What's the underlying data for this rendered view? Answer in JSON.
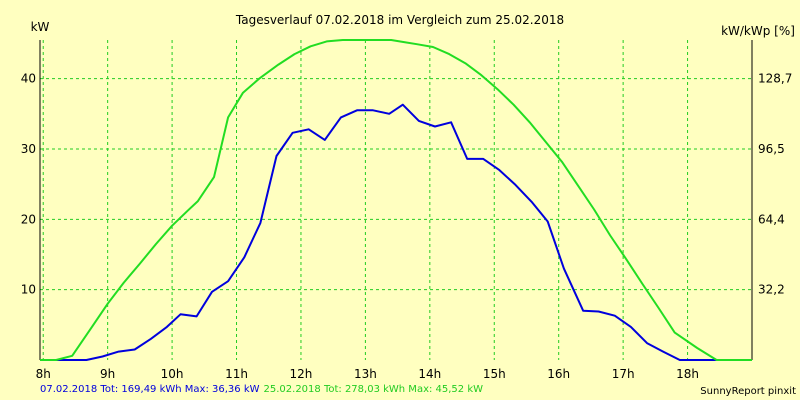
{
  "chart_data": {
    "type": "line",
    "title": "Tagesverlauf 07.02.2018 im Vergleich zum 25.02.2018",
    "ylabel_left": "kW",
    "ylabel_right": "kW/kWp [%]",
    "xlim": [
      7.95,
      19.0
    ],
    "ylim": [
      0,
      45.5
    ],
    "y_ticks_left": [
      10,
      20,
      30,
      40
    ],
    "y_tick_labels_left": [
      "10",
      "20",
      "30",
      "40"
    ],
    "y_ticks_right": [
      10,
      20,
      30,
      40
    ],
    "y_tick_labels_right": [
      "32,2",
      "64,4",
      "96,5",
      "128,7"
    ],
    "x_ticks": [
      8,
      9,
      10,
      11,
      12,
      13,
      14,
      15,
      16,
      17,
      18
    ],
    "x_tick_labels": [
      "8h",
      "9h",
      "10h",
      "11h",
      "12h",
      "13h",
      "14h",
      "15h",
      "16h",
      "17h",
      "18h"
    ],
    "grid": true,
    "series": [
      {
        "name": "07.02.2018",
        "color": "#0000dd",
        "x": [
          7.95,
          8.67,
          8.92,
          9.17,
          9.42,
          9.67,
          9.92,
          10.13,
          10.38,
          10.62,
          10.87,
          11.12,
          11.37,
          11.62,
          11.87,
          12.12,
          12.37,
          12.62,
          12.87,
          13.12,
          13.37,
          13.58,
          13.83,
          14.08,
          14.33,
          14.58,
          14.83,
          15.08,
          15.33,
          15.58,
          15.83,
          16.08,
          16.38,
          16.62,
          16.87,
          17.12,
          17.37,
          17.62,
          17.88,
          18.5
        ],
        "y": [
          0,
          0,
          0.5,
          1.2,
          1.5,
          3.0,
          4.7,
          6.5,
          6.2,
          9.7,
          11.2,
          14.6,
          19.5,
          29.0,
          32.3,
          32.8,
          31.3,
          34.5,
          35.5,
          35.5,
          35.0,
          36.3,
          34.0,
          33.2,
          33.8,
          28.6,
          28.6,
          27.0,
          24.9,
          22.5,
          19.7,
          13.0,
          7.0,
          6.9,
          6.3,
          4.7,
          2.4,
          1.2,
          0,
          0
        ]
      },
      {
        "name": "25.02.2018",
        "color": "#22dd22",
        "x": [
          7.95,
          8.2,
          8.45,
          8.75,
          9.0,
          9.25,
          9.5,
          9.75,
          10.0,
          10.25,
          10.4,
          10.65,
          10.87,
          11.1,
          11.35,
          11.65,
          11.9,
          12.15,
          12.4,
          12.65,
          12.9,
          13.2,
          13.4,
          13.6,
          13.8,
          14.05,
          14.3,
          14.55,
          14.8,
          15.05,
          15.3,
          15.55,
          15.8,
          16.05,
          16.3,
          16.55,
          16.8,
          17.05,
          17.3,
          17.55,
          17.8,
          18.15,
          18.45,
          19.0
        ],
        "y": [
          0,
          0,
          0.6,
          4.6,
          8.0,
          11.0,
          13.7,
          16.5,
          19.1,
          21.3,
          22.6,
          26.0,
          34.5,
          38.0,
          40.0,
          42.0,
          43.5,
          44.6,
          45.3,
          45.5,
          45.5,
          45.5,
          45.5,
          45.2,
          44.9,
          44.5,
          43.5,
          42.2,
          40.5,
          38.5,
          36.3,
          33.8,
          31.0,
          28.2,
          24.8,
          21.4,
          17.7,
          14.3,
          10.8,
          7.4,
          3.9,
          1.7,
          0,
          0
        ]
      }
    ],
    "footer": {
      "series1_summary": "07.02.2018 Tot: 169,49 kWh Max: 36,36 kW",
      "series2_summary": "25.02.2018 Tot: 278,03 kWh Max: 45,52 kW",
      "credit": "SunnyReport pinxit"
    }
  }
}
